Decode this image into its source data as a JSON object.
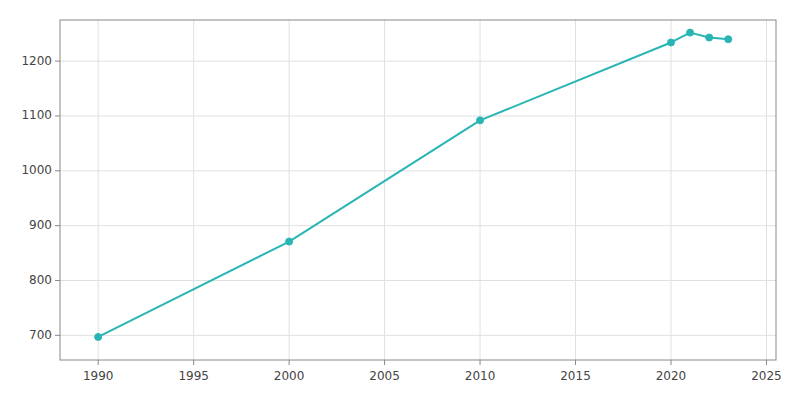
{
  "chart_data": {
    "type": "line",
    "x": [
      1990,
      2000,
      2010,
      2020,
      2021,
      2022,
      2023
    ],
    "values": [
      697,
      871,
      1092,
      1234,
      1252,
      1243,
      1240
    ],
    "color": "#2ab5b5",
    "marker": "circle",
    "xlim": [
      1988,
      2025.5
    ],
    "ylim": [
      655,
      1275
    ],
    "xticks": [
      1990,
      1995,
      2000,
      2005,
      2010,
      2015,
      2020,
      2025
    ],
    "yticks": [
      700,
      800,
      900,
      1000,
      1100,
      1200
    ],
    "grid": true
  }
}
